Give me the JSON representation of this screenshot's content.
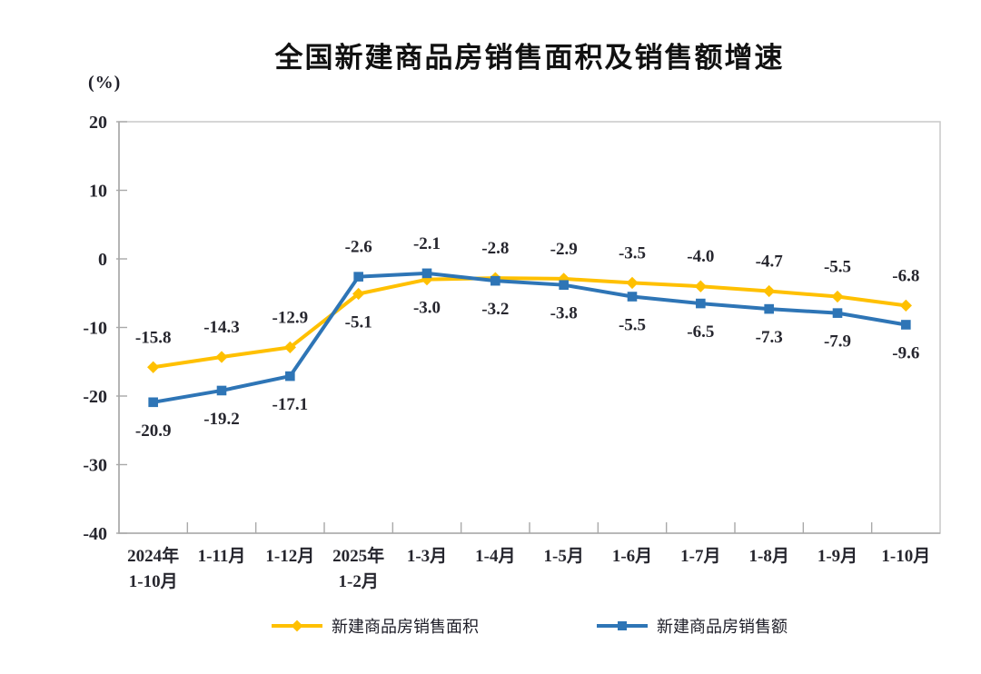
{
  "chart_data": {
    "type": "line",
    "title": "全国新建商品房销售面积及销售额增速",
    "unit_label": "(%)",
    "categories": [
      "2024年\n1-10月",
      "1-11月",
      "1-12月",
      "2025年\n1-2月",
      "1-3月",
      "1-4月",
      "1-5月",
      "1-6月",
      "1-7月",
      "1-8月",
      "1-9月",
      "1-10月"
    ],
    "series": [
      {
        "name": "新建商品房销售面积",
        "color": "#FFC000",
        "marker": "diamond",
        "values": [
          -15.8,
          -14.3,
          -12.9,
          -5.1,
          -3.0,
          -2.8,
          -2.9,
          -3.5,
          -4.0,
          -4.7,
          -5.5,
          -6.8
        ]
      },
      {
        "name": "新建商品房销售额",
        "color": "#2E75B6",
        "marker": "square",
        "values": [
          -20.9,
          -19.2,
          -17.1,
          -2.6,
          -2.1,
          -3.2,
          -3.8,
          -5.5,
          -6.5,
          -7.3,
          -7.9,
          -9.6
        ]
      }
    ],
    "ylim": [
      -40,
      20
    ],
    "yticks": [
      20,
      10,
      0,
      -10,
      -20,
      -30,
      -40
    ],
    "grid": false,
    "legend_position": "bottom",
    "data_labels": true,
    "colors": {
      "axis": "#a9a9a9",
      "plot_border": "#c9c9c9",
      "text": "#26262e",
      "title": "#111111"
    }
  }
}
